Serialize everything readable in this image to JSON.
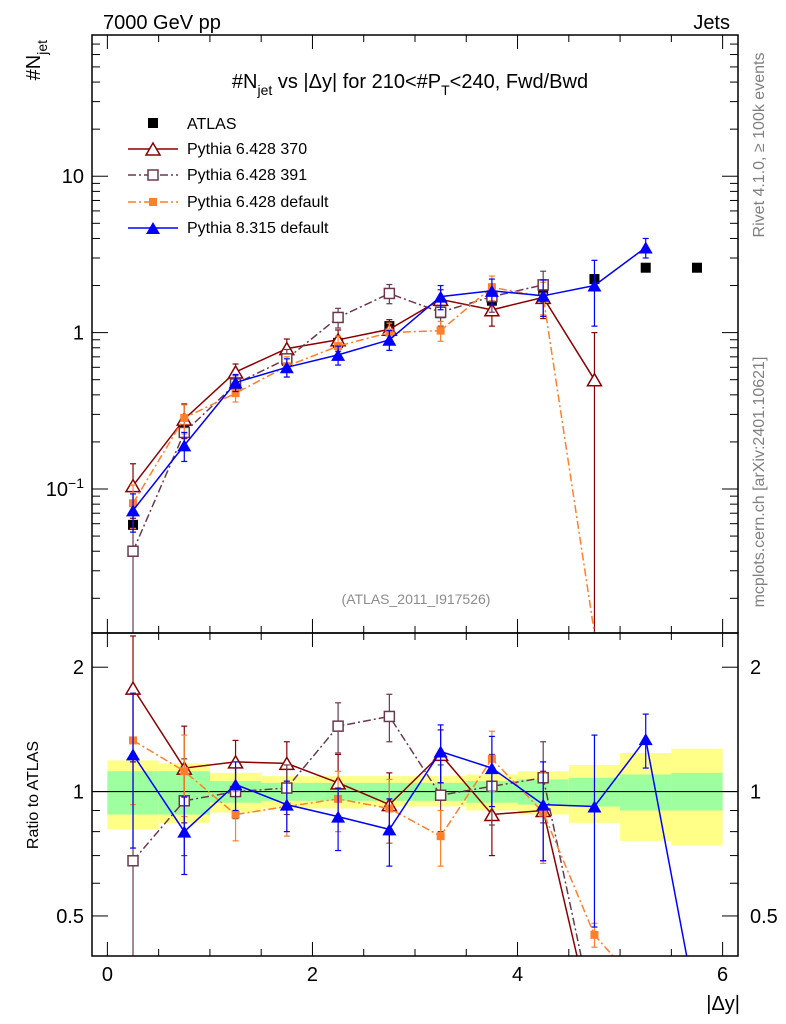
{
  "header": {
    "left": "7000 GeV pp",
    "right": "Jets"
  },
  "side_labels": {
    "rivet": "Rivet 4.1.0, ≥ 100k events",
    "mcplots": "mcplots.cern.ch [arXiv:2401.10621]"
  },
  "reference": "(ATLAS_2011_I917526)",
  "chart_data": [
    {
      "type": "scatter",
      "panel": "main",
      "title": "#N_jet vs |Δy| for 210<#P_T<240, Fwd/Bwd",
      "title_parts": {
        "p1": "#N",
        "p1_sub": "jet",
        "p2": " vs |Δy| for 210<#P",
        "p2_sub": "T",
        "p3": "<240, Fwd/Bwd"
      },
      "ylabel": "#N",
      "ylabel_sub": "jet",
      "yscale": "log",
      "xlim": [
        -0.15,
        6.15
      ],
      "ylim": [
        0.012,
        80
      ],
      "yticks": [
        {
          "v": 0.1,
          "base": "10",
          "exp": "−1"
        },
        {
          "v": 1,
          "label": "1"
        },
        {
          "v": 10,
          "label": "10"
        }
      ],
      "series": [
        {
          "name": "ATLAS",
          "color": "#000000",
          "marker": "filled-square",
          "line": "none",
          "x": [
            0.25,
            0.75,
            1.25,
            1.75,
            2.25,
            2.75,
            3.25,
            3.75,
            4.25,
            4.75,
            5.25,
            5.75
          ],
          "y": [
            0.059,
            0.245,
            0.47,
            0.66,
            0.86,
            1.1,
            1.33,
            1.6,
            1.85,
            2.2,
            2.6,
            2.6
          ]
        },
        {
          "name": "Pythia 6.428 370",
          "color": "#8b0000",
          "marker": "open-triangle",
          "line": "solid",
          "x": [
            0.25,
            0.75,
            1.25,
            1.75,
            2.25,
            2.75,
            3.25,
            3.75,
            4.25,
            4.75
          ],
          "y": [
            0.105,
            0.28,
            0.56,
            0.79,
            0.9,
            1.05,
            1.63,
            1.4,
            1.68,
            0.5
          ],
          "yerr": [
            0.04,
            0.07,
            0.07,
            0.12,
            0.14,
            0.16,
            0.25,
            0.3,
            0.45,
            0.5
          ]
        },
        {
          "name": "Pythia 6.428 391",
          "color": "#6b3a4a",
          "marker": "open-square",
          "line": "dash-dot",
          "x": [
            0.25,
            0.75,
            1.25,
            1.75,
            2.25,
            2.75,
            3.25,
            3.75,
            4.25
          ],
          "y": [
            0.04,
            0.23,
            0.47,
            0.68,
            1.25,
            1.78,
            1.35,
            1.7,
            2.02
          ],
          "yerr": [
            0.03,
            0.05,
            0.06,
            0.1,
            0.18,
            0.25,
            0.25,
            0.35,
            0.45
          ]
        },
        {
          "name": "Pythia 6.428 default",
          "color": "#ff7f2a",
          "marker": "filled-square-small",
          "line": "dash-dot",
          "x": [
            0.25,
            0.75,
            1.25,
            1.75,
            2.25,
            2.75,
            3.25,
            3.75,
            4.25,
            4.75
          ],
          "y": [
            0.081,
            0.285,
            0.41,
            0.61,
            0.82,
            1.0,
            1.03,
            1.95,
            1.7,
            0.0
          ],
          "yerr": [
            0.025,
            0.06,
            0.05,
            0.09,
            0.13,
            0.15,
            0.15,
            0.35,
            0.4,
            0.0
          ]
        },
        {
          "name": "Pythia 8.315 default",
          "color": "#0000ff",
          "marker": "filled-triangle",
          "line": "solid",
          "x": [
            0.25,
            0.75,
            1.25,
            1.75,
            2.25,
            2.75,
            3.25,
            3.75,
            4.25,
            4.75,
            5.25
          ],
          "y": [
            0.073,
            0.19,
            0.48,
            0.6,
            0.72,
            0.9,
            1.7,
            1.85,
            1.72,
            2.0,
            3.5
          ],
          "yerr": [
            0.02,
            0.04,
            0.06,
            0.08,
            0.1,
            0.13,
            0.3,
            0.35,
            0.45,
            0.9,
            0.5
          ]
        }
      ]
    },
    {
      "type": "scatter",
      "panel": "ratio",
      "ylabel": "Ratio to ATLAS",
      "xlabel": "|Δy|",
      "xlim": [
        -0.15,
        6.15
      ],
      "ylim": [
        0.4,
        2.42
      ],
      "xticks": [
        0,
        2,
        4,
        6
      ],
      "yticks": [
        0.5,
        1,
        2
      ],
      "reference_line": 1,
      "bands": {
        "x_edges": [
          0,
          0.5,
          1,
          1.5,
          2,
          2.5,
          3,
          3.5,
          4,
          4.5,
          5,
          5.5,
          6
        ],
        "green_lo": [
          0.88,
          0.88,
          0.94,
          0.95,
          0.95,
          0.95,
          0.95,
          0.94,
          0.93,
          0.92,
          0.9,
          0.9
        ],
        "green_hi": [
          1.12,
          1.12,
          1.06,
          1.05,
          1.05,
          1.05,
          1.05,
          1.06,
          1.07,
          1.08,
          1.1,
          1.11
        ],
        "yellow_lo": [
          0.81,
          0.84,
          0.89,
          0.91,
          0.91,
          0.92,
          0.92,
          0.9,
          0.88,
          0.84,
          0.76,
          0.74
        ],
        "yellow_hi": [
          1.19,
          1.17,
          1.11,
          1.09,
          1.09,
          1.09,
          1.09,
          1.1,
          1.12,
          1.16,
          1.24,
          1.27
        ],
        "green_color": "#9dff9d",
        "yellow_color": "#ffff88"
      },
      "series": [
        {
          "name": "Pythia 6.428 370",
          "color": "#8b0000",
          "marker": "open-triangle",
          "line": "solid",
          "x": [
            0.25,
            0.75,
            1.25,
            1.75,
            2.25,
            2.75,
            3.25,
            3.75,
            4.25,
            4.58
          ],
          "y": [
            1.78,
            1.14,
            1.18,
            1.17,
            1.05,
            0.93,
            1.23,
            0.88,
            0.9,
            0.4
          ],
          "yerr": [
            0.6,
            0.3,
            0.15,
            0.15,
            0.18,
            0.18,
            0.18,
            0.18,
            0.22,
            0.0
          ],
          "marker_points": 9
        },
        {
          "name": "Pythia 6.428 391",
          "color": "#6b3a4a",
          "marker": "open-square",
          "line": "dash-dot",
          "x": [
            0.25,
            0.75,
            1.25,
            1.75,
            2.25,
            2.75,
            3.25,
            3.75,
            4.25,
            4.62
          ],
          "y": [
            0.68,
            0.95,
            1.0,
            1.02,
            1.44,
            1.52,
            0.98,
            1.03,
            1.08,
            0.4
          ],
          "yerr": [
            0.55,
            0.25,
            0.14,
            0.14,
            0.2,
            0.2,
            0.18,
            0.2,
            0.24,
            0.0
          ],
          "marker_points": 9
        },
        {
          "name": "Pythia 6.428 default",
          "color": "#ff7f2a",
          "marker": "filled-square-small",
          "line": "dash-dot",
          "x": [
            0.25,
            0.75,
            1.25,
            1.75,
            2.25,
            2.75,
            3.25,
            3.75,
            4.25,
            4.75,
            4.93
          ],
          "y": [
            1.33,
            1.12,
            0.88,
            0.92,
            0.96,
            0.91,
            0.78,
            1.2,
            0.89,
            0.45,
            0.4
          ],
          "yerr": [
            0.4,
            0.25,
            0.12,
            0.14,
            0.16,
            0.16,
            0.12,
            0.2,
            0.22,
            0.03,
            0.0
          ],
          "marker_points": 10
        },
        {
          "name": "Pythia 8.315 default",
          "color": "#0000ff",
          "marker": "filled-triangle",
          "line": "solid",
          "x": [
            0.25,
            0.75,
            1.25,
            1.75,
            2.25,
            2.75,
            3.25,
            3.75,
            4.25,
            4.75,
            5.25,
            5.65
          ],
          "y": [
            1.23,
            0.8,
            1.04,
            0.93,
            0.87,
            0.81,
            1.25,
            1.14,
            0.93,
            0.92,
            1.34,
            0.4
          ],
          "yerr": [
            0.5,
            0.17,
            0.14,
            0.13,
            0.15,
            0.15,
            0.2,
            0.22,
            0.25,
            0.45,
            0.2,
            0.0
          ],
          "marker_points": 11
        }
      ]
    }
  ]
}
